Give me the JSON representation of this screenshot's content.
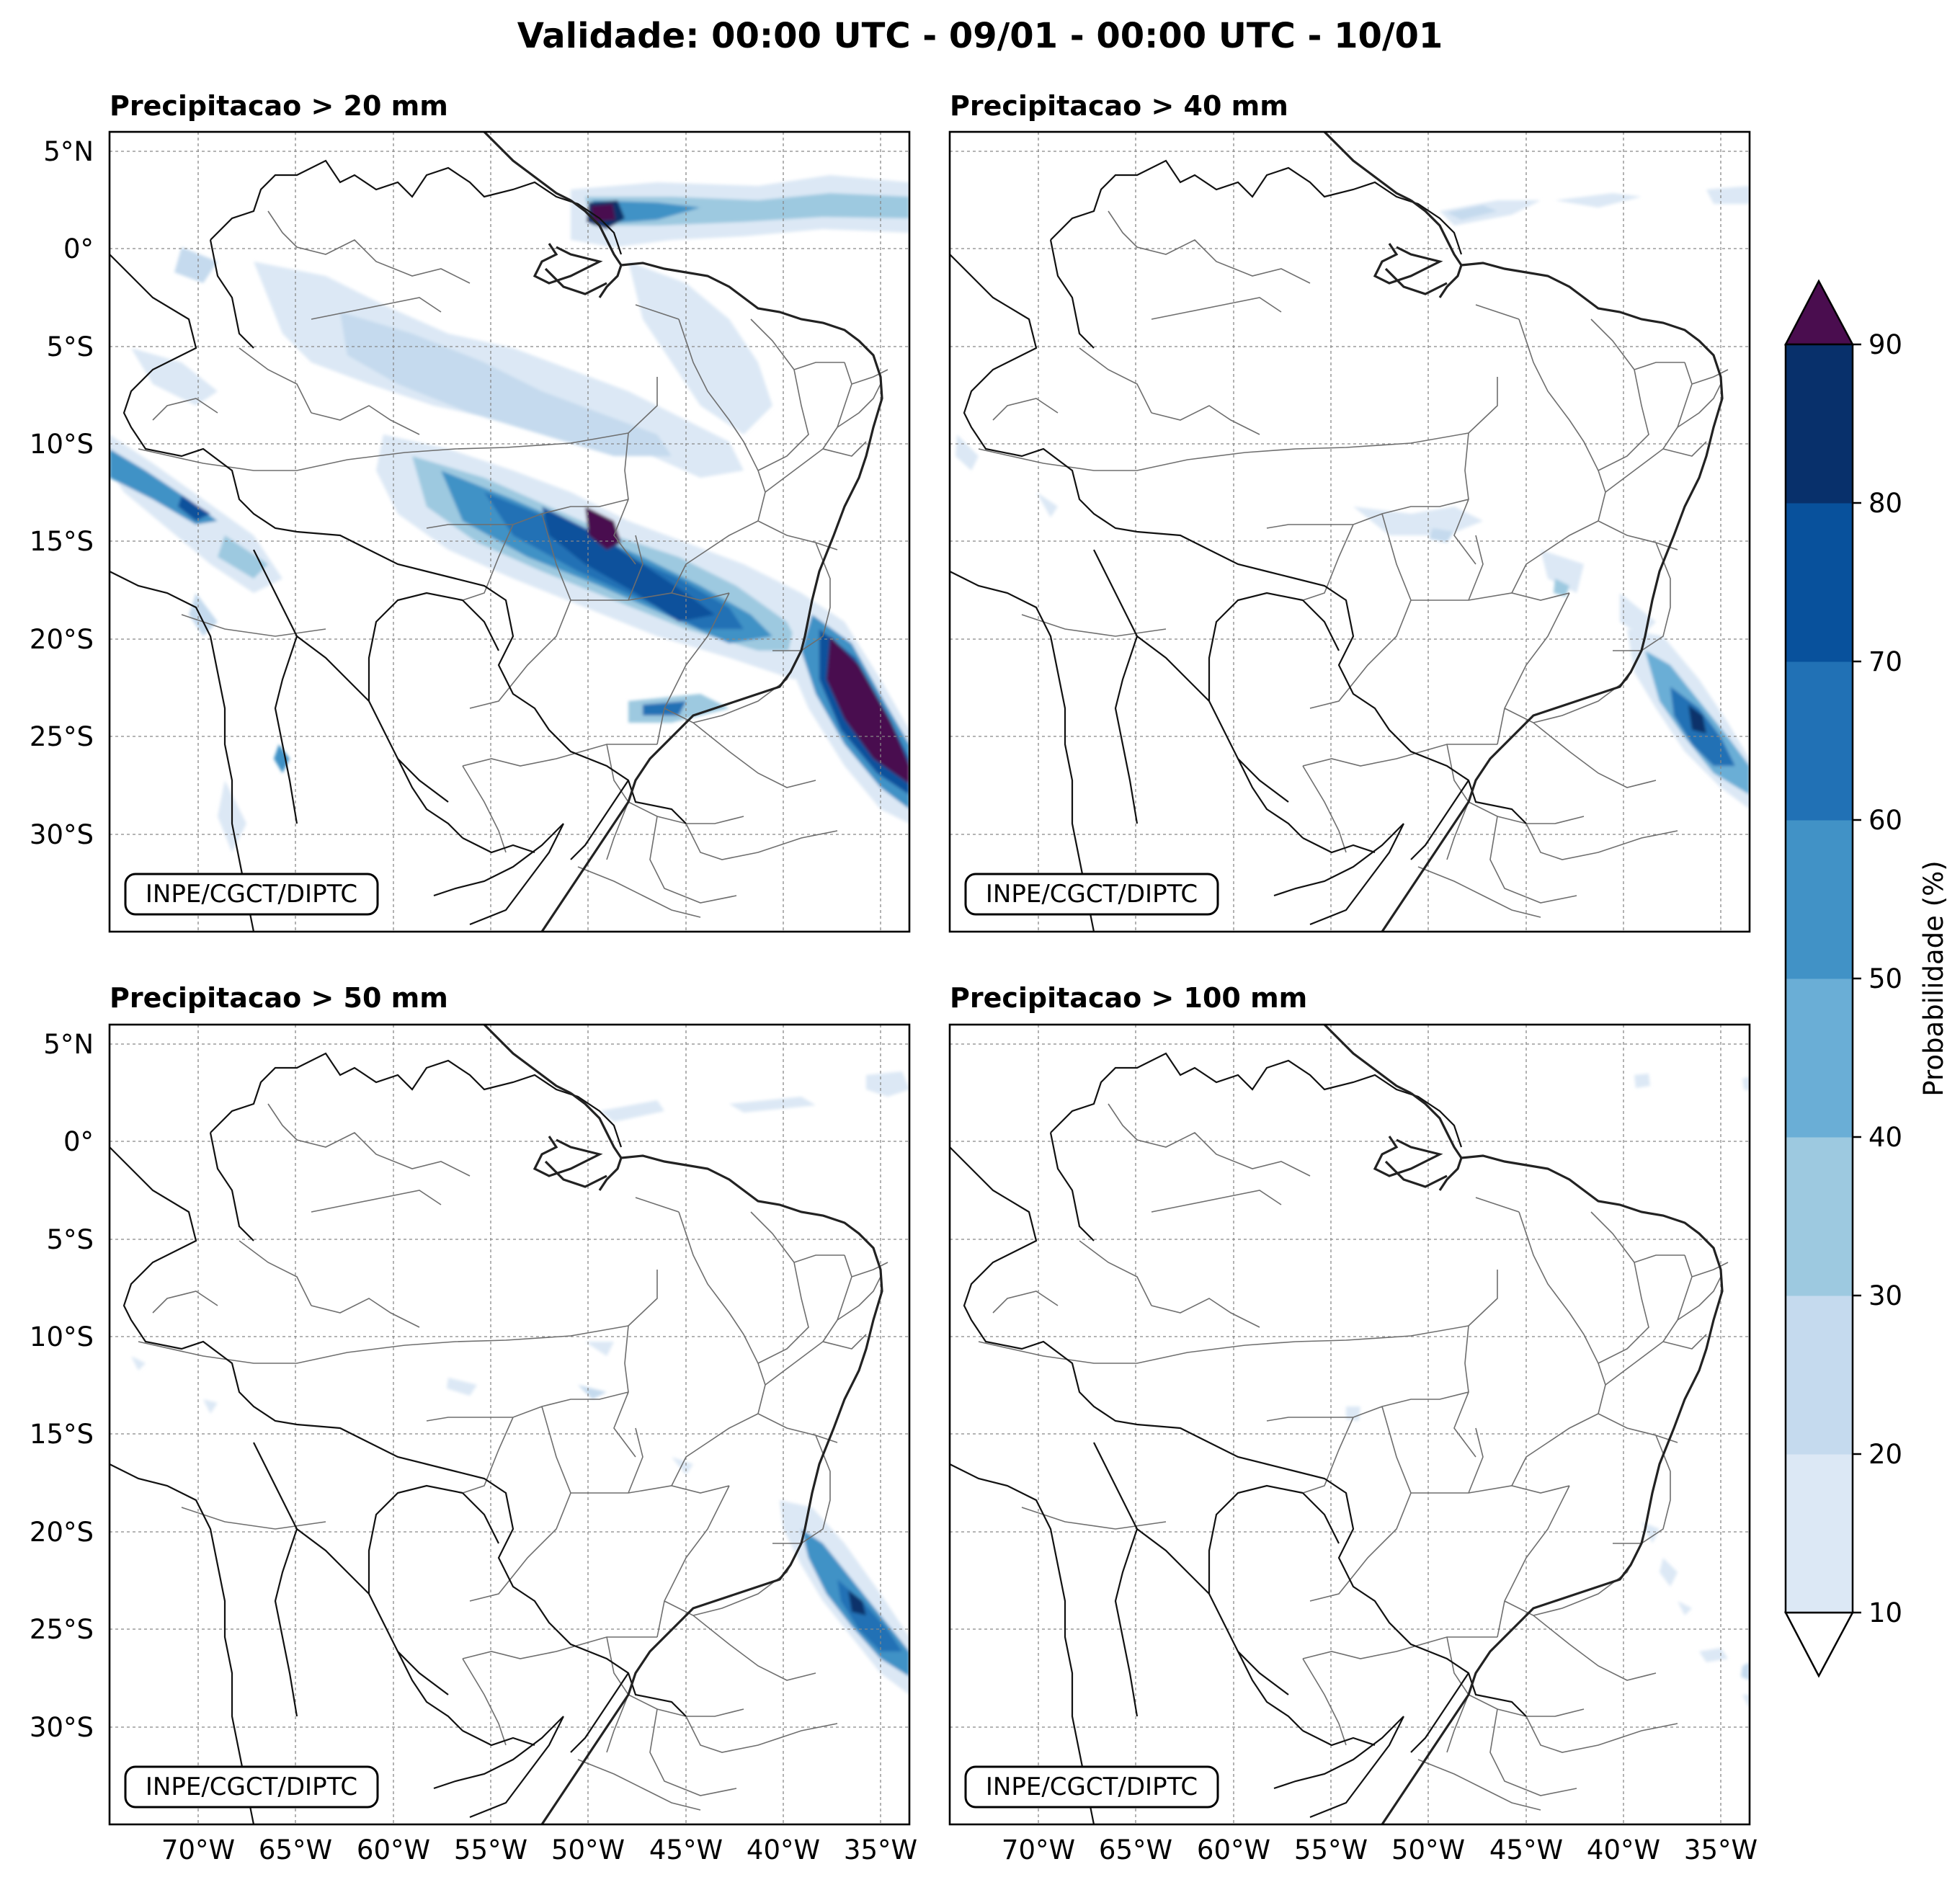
{
  "figure": {
    "title": "Validade: 00:00 UTC - 09/01 - 00:00 UTC - 10/01"
  },
  "credit": "INPE/CGCT/DIPTC",
  "panels": [
    {
      "id": "p20",
      "subtitle": "Precipitacao > 20 mm"
    },
    {
      "id": "p40",
      "subtitle": "Precipitacao > 40 mm"
    },
    {
      "id": "p50",
      "subtitle": "Precipitacao > 50 mm"
    },
    {
      "id": "p100",
      "subtitle": "Precipitacao > 100 mm"
    }
  ],
  "axes": {
    "lon_ticks": [
      "70°W",
      "65°W",
      "60°W",
      "55°W",
      "50°W",
      "45°W",
      "40°W",
      "35°W"
    ],
    "lat_ticks": [
      "5°N",
      "0°",
      "5°S",
      "10°S",
      "15°S",
      "20°S",
      "25°S",
      "30°S"
    ],
    "lon_range": [
      -75,
      -34
    ],
    "lat_range": [
      -35,
      6
    ]
  },
  "colorbar": {
    "label": "Probabilidade (%)",
    "ticks": [
      "10",
      "20",
      "30",
      "40",
      "50",
      "60",
      "70",
      "80",
      "90"
    ],
    "colors": [
      "#dce8f5",
      "#c5daee",
      "#9dc9e0",
      "#6aaed6",
      "#4192c6",
      "#2171b5",
      "#08519c",
      "#08306b"
    ],
    "under_color": "#ffffff",
    "over_color": "#4a0d4f"
  },
  "chart_data": {
    "type": "map",
    "title": "Validade: 00:00 UTC - 09/01 - 00:00 UTC - 10/01",
    "variable": "Probabilidade (%)",
    "levels": [
      10,
      20,
      30,
      40,
      50,
      60,
      70,
      80,
      90
    ],
    "panels": [
      "Precipitacao > 20 mm",
      "Precipitacao > 40 mm",
      "Precipitacao > 50 mm",
      "Precipitacao > 100 mm"
    ]
  }
}
